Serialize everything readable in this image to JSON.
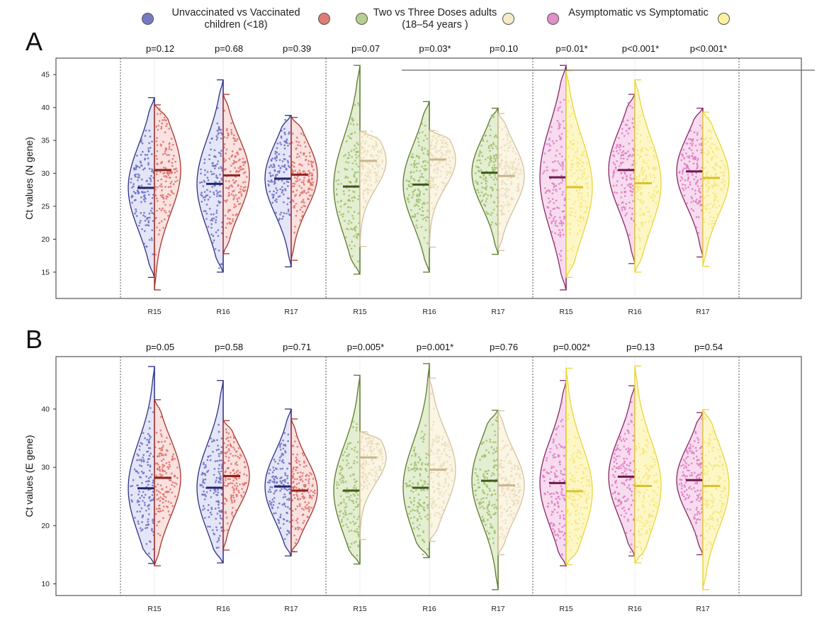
{
  "legend": {
    "groups": [
      {
        "label": "Unvaccinated vs Vaccinated children (<18)",
        "colors": [
          "#7479c1",
          "#e07b76"
        ]
      },
      {
        "label": "Two vs Three Doses adults (18–54 years )",
        "colors": [
          "#b7cf8e",
          "#f5ecc7"
        ]
      },
      {
        "label": "Asymptomatic vs Symptomatic",
        "colors": [
          "#e08fc8",
          "#fbf2a0"
        ]
      }
    ]
  },
  "chart_data": [
    {
      "type": "violin",
      "panel": "A",
      "ylabel": "Ct values (N gene)",
      "ylim": [
        11,
        47.5
      ],
      "yticks": [
        15,
        20,
        25,
        30,
        35,
        40,
        45
      ],
      "categories": [
        "R15",
        "R16",
        "R17",
        "R15",
        "R16",
        "R17",
        "R15",
        "R16",
        "R17"
      ],
      "pvalues": [
        "p=0.12",
        "p=0.68",
        "p=0.39",
        "p=0.07",
        "p=0.03*",
        "p=0.10",
        "p=0.01*",
        "p<0.001*",
        "p<0.001*"
      ],
      "medians_left": [
        27.8,
        28.4,
        29.2,
        28.0,
        28.3,
        30.1,
        29.4,
        30.5,
        30.3
      ],
      "medians_right": [
        30.5,
        29.7,
        29.8,
        31.9,
        32.1,
        29.6,
        27.9,
        28.5,
        29.3
      ],
      "ranges_left": [
        [
          14.2,
          41.5
        ],
        [
          15.0,
          44.2
        ],
        [
          15.8,
          38.8
        ],
        [
          14.7,
          46.4
        ],
        [
          15.0,
          40.9
        ],
        [
          17.7,
          39.9
        ],
        [
          12.3,
          46.4
        ],
        [
          16.3,
          42.0
        ],
        [
          17.3,
          39.9
        ]
      ],
      "ranges_right": [
        [
          12.3,
          40.4
        ],
        [
          17.8,
          42.0
        ],
        [
          16.8,
          38.5
        ],
        [
          18.9,
          36.4
        ],
        [
          18.8,
          36.5
        ],
        [
          18.3,
          39.1
        ],
        [
          14.2,
          45.6
        ],
        [
          15.0,
          44.2
        ],
        [
          15.9,
          39.3
        ]
      ]
    },
    {
      "type": "violin",
      "panel": "B",
      "ylabel": "Ct values (E gene)",
      "ylim": [
        8,
        49
      ],
      "yticks": [
        10,
        20,
        30,
        40
      ],
      "categories": [
        "R15",
        "R16",
        "R17",
        "R15",
        "R16",
        "R17",
        "R15",
        "R16",
        "R17"
      ],
      "pvalues": [
        "p=0.05",
        "p=0.58",
        "p=0.71",
        "p=0.005*",
        "p=0.001*",
        "p=0.76",
        "p=0.002*",
        "p=0.13",
        "p=0.54"
      ],
      "medians_left": [
        26.4,
        26.5,
        26.7,
        26.0,
        26.5,
        27.7,
        27.3,
        28.4,
        27.8
      ],
      "medians_right": [
        28.2,
        28.5,
        26.0,
        31.7,
        29.6,
        26.9,
        25.9,
        26.8,
        26.8
      ],
      "ranges_left": [
        [
          13.5,
          47.3
        ],
        [
          13.6,
          44.9
        ],
        [
          14.8,
          40.0
        ],
        [
          13.4,
          45.8
        ],
        [
          14.5,
          47.8
        ],
        [
          9.0,
          39.8
        ],
        [
          13.1,
          44.9
        ],
        [
          14.8,
          44.0
        ],
        [
          15.0,
          39.4
        ]
      ],
      "ranges_right": [
        [
          13.1,
          41.6
        ],
        [
          15.8,
          38.0
        ],
        [
          15.5,
          38.3
        ],
        [
          17.6,
          36.1
        ],
        [
          17.3,
          45.3
        ],
        [
          15.0,
          39.7
        ],
        [
          13.3,
          47.0
        ],
        [
          13.6,
          47.4
        ],
        [
          9.0,
          39.9
        ]
      ]
    }
  ]
}
